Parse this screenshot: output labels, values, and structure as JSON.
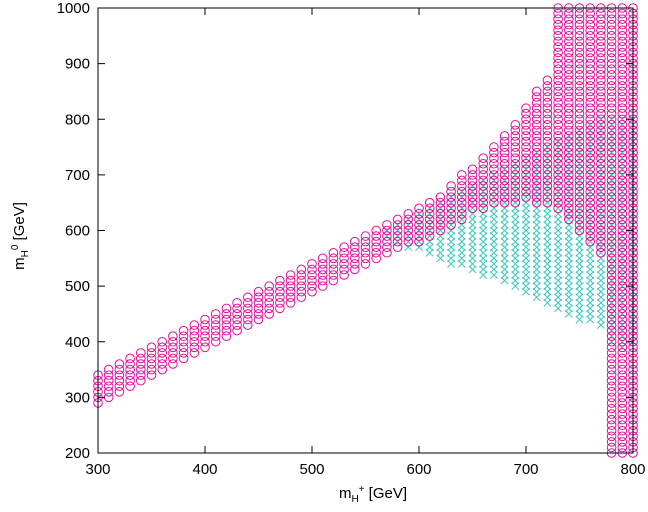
{
  "chart_data": {
    "type": "scatter",
    "xlim": [
      300,
      800
    ],
    "ylim": [
      200,
      1000
    ],
    "xticks": [
      300,
      400,
      500,
      600,
      700,
      800
    ],
    "yticks": [
      200,
      300,
      400,
      500,
      600,
      700,
      800,
      900,
      1000
    ],
    "xlabel": {
      "main": "m",
      "sub": "H",
      "sup": "+",
      "rest": " [GeV]"
    },
    "ylabel": {
      "main": "m",
      "sub": "H",
      "sup": "0",
      "rest": " [GeV]"
    },
    "grid": false,
    "grid_step": {
      "x": 10,
      "y": 10
    },
    "series": [
      {
        "marker": "circle",
        "color": "#e0109c",
        "columns": [
          [
            300,
            290,
            340
          ],
          [
            310,
            300,
            350
          ],
          [
            320,
            310,
            360
          ],
          [
            330,
            320,
            370
          ],
          [
            340,
            330,
            380
          ],
          [
            350,
            340,
            390
          ],
          [
            360,
            350,
            400
          ],
          [
            370,
            360,
            410
          ],
          [
            380,
            370,
            420
          ],
          [
            390,
            380,
            430
          ],
          [
            400,
            390,
            440
          ],
          [
            410,
            400,
            450
          ],
          [
            420,
            410,
            460
          ],
          [
            430,
            420,
            470
          ],
          [
            440,
            430,
            480
          ],
          [
            450,
            440,
            490
          ],
          [
            460,
            450,
            500
          ],
          [
            470,
            460,
            510
          ],
          [
            480,
            470,
            520
          ],
          [
            490,
            480,
            530
          ],
          [
            500,
            490,
            540
          ],
          [
            510,
            500,
            550
          ],
          [
            520,
            510,
            560
          ],
          [
            530,
            520,
            570
          ],
          [
            540,
            530,
            580
          ],
          [
            550,
            540,
            590
          ],
          [
            560,
            550,
            600
          ],
          [
            570,
            560,
            610
          ],
          [
            580,
            570,
            620
          ],
          [
            590,
            580,
            630
          ],
          [
            600,
            580,
            640
          ],
          [
            610,
            590,
            650
          ],
          [
            620,
            600,
            660
          ],
          [
            630,
            610,
            680
          ],
          [
            640,
            620,
            700
          ],
          [
            650,
            640,
            710
          ],
          [
            660,
            640,
            730
          ],
          [
            670,
            650,
            750
          ],
          [
            680,
            650,
            770
          ],
          [
            690,
            650,
            790
          ],
          [
            700,
            660,
            820
          ],
          [
            710,
            650,
            850
          ],
          [
            720,
            650,
            870
          ],
          [
            730,
            640,
            1000
          ],
          [
            740,
            620,
            1000
          ],
          [
            750,
            600,
            1000
          ],
          [
            760,
            580,
            1000
          ],
          [
            770,
            560,
            1000
          ],
          [
            780,
            200,
            1000
          ],
          [
            790,
            200,
            1000
          ],
          [
            800,
            200,
            1000
          ]
        ]
      },
      {
        "marker": "cross",
        "color": "#3fc9bd",
        "columns": [
          [
            570,
            590,
            600
          ],
          [
            580,
            580,
            610
          ],
          [
            590,
            570,
            620
          ],
          [
            600,
            570,
            630
          ],
          [
            610,
            560,
            640
          ],
          [
            620,
            550,
            650
          ],
          [
            630,
            540,
            660
          ],
          [
            640,
            540,
            670
          ],
          [
            650,
            530,
            680
          ],
          [
            660,
            520,
            690
          ],
          [
            670,
            520,
            700
          ],
          [
            680,
            510,
            710
          ],
          [
            690,
            500,
            720
          ],
          [
            700,
            490,
            730
          ],
          [
            710,
            480,
            740
          ],
          [
            720,
            470,
            750
          ],
          [
            730,
            460,
            760
          ],
          [
            740,
            450,
            770
          ],
          [
            750,
            440,
            780
          ],
          [
            760,
            440,
            790
          ],
          [
            770,
            430,
            800
          ],
          [
            780,
            400,
            800
          ],
          [
            790,
            390,
            800
          ],
          [
            800,
            400,
            800
          ]
        ]
      }
    ]
  }
}
